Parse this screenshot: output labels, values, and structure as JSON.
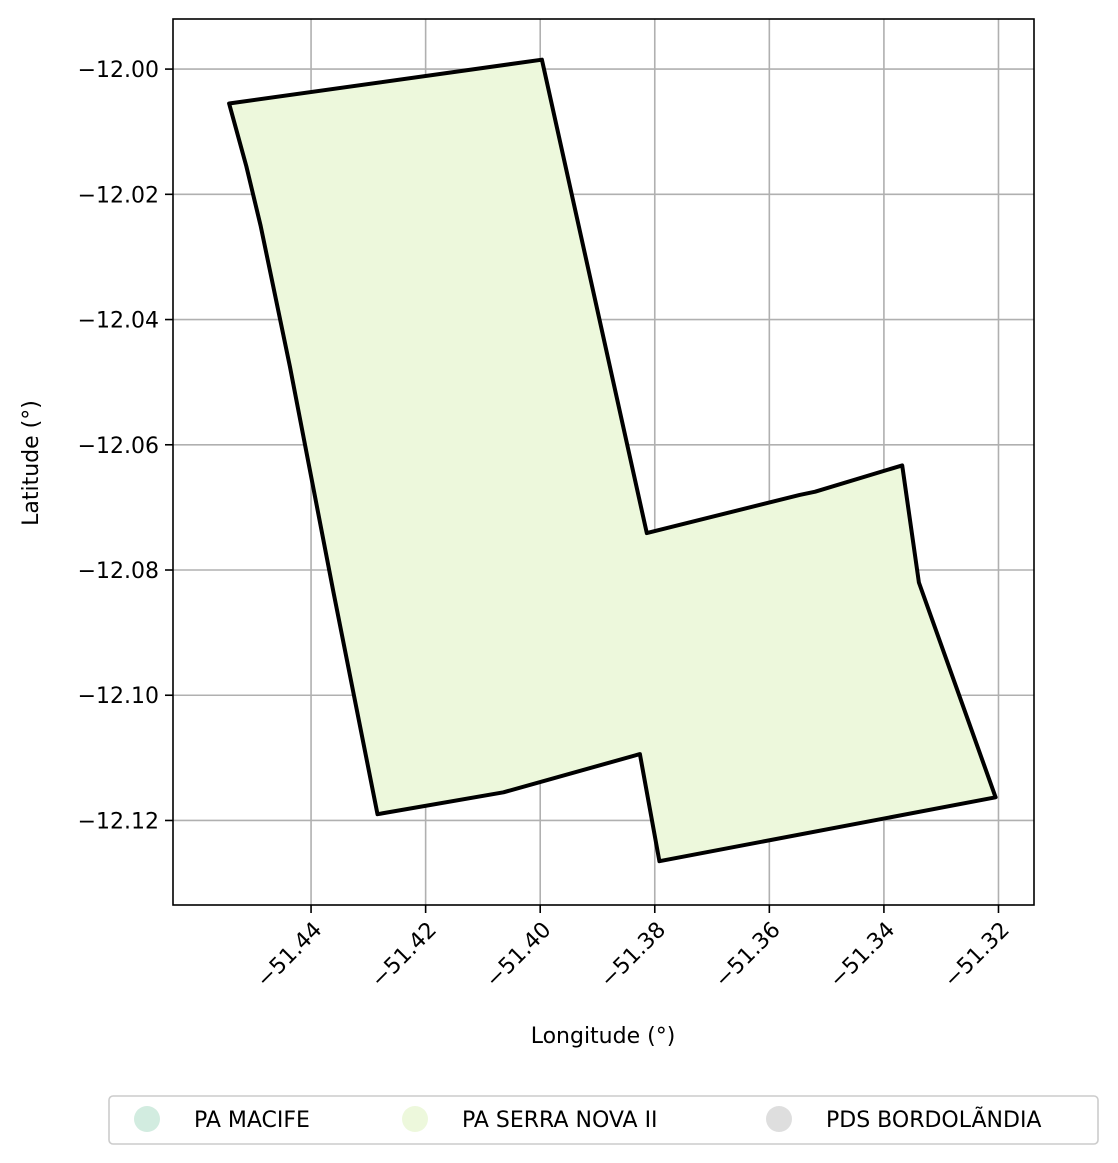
{
  "chart_data": {
    "type": "map",
    "xlabel": "Longitude (°)",
    "ylabel": "Latitude (°)",
    "xlim": [
      -51.4641,
      -51.3138
    ],
    "ylim": [
      -12.1335,
      -11.992
    ],
    "grid": true,
    "x_ticks": [
      {
        "value": -51.44,
        "label": "−51.44"
      },
      {
        "value": -51.42,
        "label": "−51.42"
      },
      {
        "value": -51.4,
        "label": "−51.40"
      },
      {
        "value": -51.38,
        "label": "−51.38"
      },
      {
        "value": -51.36,
        "label": "−51.36"
      },
      {
        "value": -51.34,
        "label": "−51.34"
      },
      {
        "value": -51.32,
        "label": "−51.32"
      }
    ],
    "y_ticks": [
      {
        "value": -12.0,
        "label": "−12.00"
      },
      {
        "value": -12.02,
        "label": "−12.02"
      },
      {
        "value": -12.04,
        "label": "−12.04"
      },
      {
        "value": -12.06,
        "label": "−12.06"
      },
      {
        "value": -12.08,
        "label": "−12.08"
      },
      {
        "value": -12.1,
        "label": "−12.10"
      },
      {
        "value": -12.12,
        "label": "−12.12"
      }
    ],
    "polygons": [
      {
        "name": "PA SERRA NOVA II",
        "fill": "#edf8dc",
        "stroke": "#000000",
        "coordinates": [
          [
            -51.4543,
            -12.0055
          ],
          [
            -51.3997,
            -11.9985
          ],
          [
            -51.3814,
            -12.0741
          ],
          [
            -51.3547,
            -12.068
          ],
          [
            -51.352,
            -12.0675
          ],
          [
            -51.3368,
            -12.0633
          ],
          [
            -51.3339,
            -12.082
          ],
          [
            -51.3205,
            -12.1163
          ],
          [
            -51.3792,
            -12.1265
          ],
          [
            -51.3826,
            -12.1094
          ],
          [
            -51.4064,
            -12.1155
          ],
          [
            -51.4284,
            -12.119
          ],
          [
            -51.4361,
            -12.0835
          ],
          [
            -51.4437,
            -12.0475
          ],
          [
            -51.4488,
            -12.025
          ],
          [
            -51.4513,
            -12.0155
          ]
        ]
      }
    ],
    "legend": {
      "placement": "bottom",
      "entries": [
        {
          "label": "PA MACIFE",
          "color": "#d2ece0"
        },
        {
          "label": "PA SERRA NOVA II",
          "color": "#edf8dc"
        },
        {
          "label": "PDS BORDOLÃNDIA",
          "color": "#dedede"
        }
      ]
    }
  }
}
